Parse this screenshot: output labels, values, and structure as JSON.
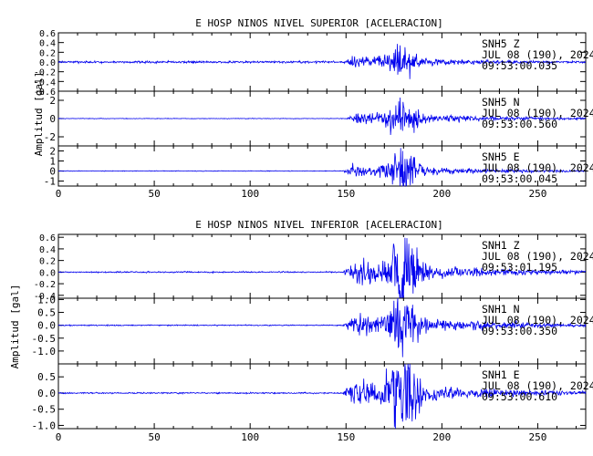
{
  "chart_data": [
    {
      "type": "line",
      "title": "E HOSP NINOS NIVEL SUPERIOR [ACELERACION]",
      "ylabel": "Amplitud [gal]",
      "xlim": [
        0,
        275
      ],
      "xticks": [
        "0",
        "50",
        "100",
        "150",
        "200",
        "250"
      ],
      "series": [
        {
          "name": "SNH5",
          "component": "Z",
          "date": "JUL 08 (190), 2024",
          "time": "09:53:00.035",
          "ylim": [
            -0.6,
            0.6
          ],
          "yticks": [
            "0.6",
            "0.4",
            "0.2",
            "0.0",
            "-0.2",
            "-0.4",
            "-0.6"
          ],
          "onset": 148,
          "peak_time": 180,
          "peak_amplitude": 0.3,
          "noise_amplitude": 0.02
        },
        {
          "name": "SNH5",
          "component": "N",
          "date": "JUL 08 (190), 2024",
          "time": "09:53:00.560",
          "ylim": [
            -3,
            3
          ],
          "yticks": [
            "2",
            "0",
            "-2"
          ],
          "onset": 150,
          "peak_time": 180,
          "peak_amplitude": 2.0,
          "noise_amplitude": 0.03
        },
        {
          "name": "SNH5",
          "component": "E",
          "date": "JUL 08 (190), 2024",
          "time": "09:53:00.045",
          "ylim": [
            -1.5,
            2.5
          ],
          "yticks": [
            "2",
            "1",
            "0",
            "-1"
          ],
          "onset": 148,
          "peak_time": 180,
          "peak_amplitude": 1.6,
          "noise_amplitude": 0.03
        }
      ]
    },
    {
      "type": "line",
      "title": "E HOSP NINOS NIVEL INFERIOR [ACELERACION]",
      "ylabel": "Amplitud [gal]",
      "xlim": [
        0,
        275
      ],
      "xticks": [
        "0",
        "50",
        "100",
        "150",
        "200",
        "250"
      ],
      "series": [
        {
          "name": "SNH1",
          "component": "Z",
          "date": "JUL 08 (190), 2024",
          "time": "09:53:01.195",
          "ylim": [
            -0.45,
            0.65
          ],
          "yticks": [
            "0.6",
            "0.4",
            "0.2",
            "0.0",
            "-0.2",
            "-0.4"
          ],
          "onset": 148,
          "peak_time": 180,
          "peak_amplitude": 0.55,
          "noise_amplitude": 0.01
        },
        {
          "name": "SNH1",
          "component": "N",
          "date": "JUL 08 (190), 2024",
          "time": "09:53:00.350",
          "ylim": [
            -1.5,
            1.05
          ],
          "yticks": [
            "1.0",
            "0.5",
            "0.0",
            "-0.5",
            "-1.0"
          ],
          "onset": 148,
          "peak_time": 180,
          "peak_amplitude": 1.2,
          "noise_amplitude": 0.02
        },
        {
          "name": "SNH1",
          "component": "E",
          "date": "JUL 08 (190), 2024",
          "time": "09:53:00.610",
          "ylim": [
            -1.1,
            0.9
          ],
          "yticks": [
            "0.5",
            "0.0",
            "-0.5",
            "-1.0"
          ],
          "onset": 148,
          "peak_time": 180,
          "peak_amplitude": 1.05,
          "noise_amplitude": 0.02
        }
      ]
    }
  ]
}
